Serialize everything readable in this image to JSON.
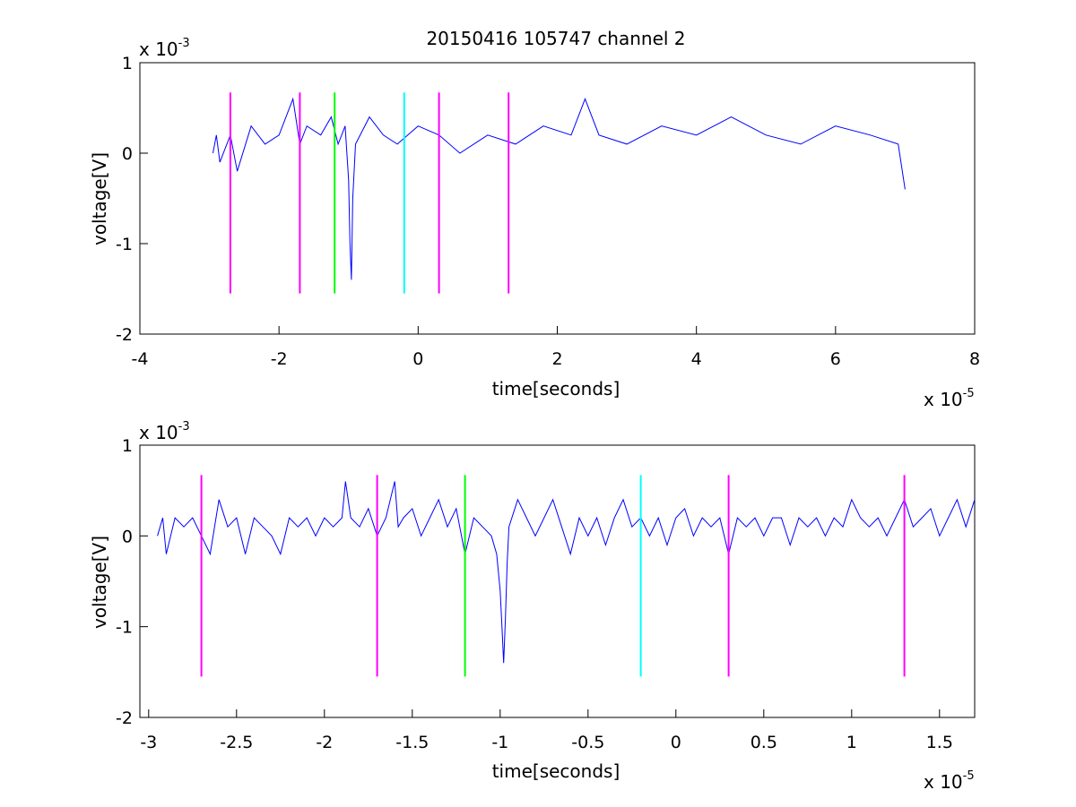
{
  "chart_data": [
    {
      "type": "line",
      "title": "20150416 105747 channel 2",
      "xlabel": "time[seconds]",
      "ylabel": "voltage[V]",
      "x_exponent_label": "x 10",
      "x_exponent": "-5",
      "y_exponent_label": "x 10",
      "y_exponent": "-3",
      "xlim": [
        -4,
        8
      ],
      "ylim": [
        -2,
        1
      ],
      "xticks": [
        "-4",
        "-2",
        "0",
        "2",
        "4",
        "6",
        "8"
      ],
      "yticks": [
        "-2",
        "-1",
        "0",
        "1"
      ],
      "grid": false,
      "series": [
        {
          "color": "#0000ff",
          "x": [
            -2.95,
            -2.9,
            -2.85,
            -2.7,
            -2.6,
            -2.4,
            -2.2,
            -2.0,
            -1.8,
            -1.7,
            -1.6,
            -1.4,
            -1.25,
            -1.15,
            -1.05,
            -1.0,
            -0.98,
            -0.96,
            -0.94,
            -0.9,
            -0.7,
            -0.5,
            -0.3,
            0.0,
            0.3,
            0.6,
            1.0,
            1.4,
            1.8,
            2.2,
            2.4,
            2.6,
            3.0,
            3.5,
            4.0,
            4.5,
            5.0,
            5.5,
            6.0,
            6.5,
            6.9,
            7.0
          ],
          "y": [
            0.0,
            0.2,
            -0.1,
            0.2,
            -0.2,
            0.3,
            0.1,
            0.2,
            0.6,
            0.1,
            0.3,
            0.2,
            0.4,
            0.1,
            0.3,
            -0.3,
            -1.0,
            -1.4,
            -0.5,
            0.1,
            0.4,
            0.2,
            0.1,
            0.3,
            0.2,
            0.0,
            0.2,
            0.1,
            0.3,
            0.2,
            0.6,
            0.2,
            0.1,
            0.3,
            0.2,
            0.4,
            0.2,
            0.1,
            0.3,
            0.2,
            0.1,
            -0.4
          ]
        },
        {
          "color": "#ff00ff",
          "x": [
            -2.7,
            -2.7
          ],
          "y": [
            -1.55,
            0.67
          ]
        },
        {
          "color": "#ff00ff",
          "x": [
            -1.7,
            -1.7
          ],
          "y": [
            -1.55,
            0.67
          ]
        },
        {
          "color": "#00ff00",
          "x": [
            -1.2,
            -1.2
          ],
          "y": [
            -1.55,
            0.67
          ]
        },
        {
          "color": "#00ffff",
          "x": [
            -0.2,
            -0.2
          ],
          "y": [
            -1.55,
            0.67
          ]
        },
        {
          "color": "#ff00ff",
          "x": [
            0.3,
            0.3
          ],
          "y": [
            -1.55,
            0.67
          ]
        },
        {
          "color": "#ff00ff",
          "x": [
            1.3,
            1.3
          ],
          "y": [
            -1.55,
            0.67
          ]
        }
      ]
    },
    {
      "type": "line",
      "title": "",
      "xlabel": "time[seconds]",
      "ylabel": "voltage[V]",
      "x_exponent_label": "x 10",
      "x_exponent": "-5",
      "y_exponent_label": "x 10",
      "y_exponent": "-3",
      "xlim": [
        -3.05,
        1.7
      ],
      "ylim": [
        -2,
        1
      ],
      "xticks": [
        "-3",
        "-2.5",
        "-2",
        "-1.5",
        "-1",
        "-0.5",
        "0",
        "0.5",
        "1",
        "1.5"
      ],
      "yticks": [
        "-2",
        "-1",
        "0",
        "1"
      ],
      "grid": false,
      "series": [
        {
          "color": "#0000ff",
          "x": [
            -2.95,
            -2.92,
            -2.9,
            -2.85,
            -2.8,
            -2.75,
            -2.7,
            -2.65,
            -2.6,
            -2.55,
            -2.5,
            -2.45,
            -2.4,
            -2.35,
            -2.3,
            -2.25,
            -2.2,
            -2.15,
            -2.1,
            -2.05,
            -2.0,
            -1.95,
            -1.9,
            -1.88,
            -1.85,
            -1.8,
            -1.75,
            -1.7,
            -1.65,
            -1.6,
            -1.58,
            -1.55,
            -1.5,
            -1.45,
            -1.4,
            -1.35,
            -1.3,
            -1.25,
            -1.2,
            -1.15,
            -1.1,
            -1.05,
            -1.02,
            -1.0,
            -0.99,
            -0.98,
            -0.97,
            -0.96,
            -0.95,
            -0.9,
            -0.85,
            -0.8,
            -0.75,
            -0.7,
            -0.65,
            -0.6,
            -0.55,
            -0.5,
            -0.45,
            -0.4,
            -0.35,
            -0.3,
            -0.25,
            -0.2,
            -0.15,
            -0.1,
            -0.05,
            0.0,
            0.05,
            0.1,
            0.15,
            0.2,
            0.25,
            0.3,
            0.35,
            0.4,
            0.45,
            0.5,
            0.55,
            0.6,
            0.65,
            0.7,
            0.75,
            0.8,
            0.85,
            0.9,
            0.95,
            1.0,
            1.05,
            1.1,
            1.15,
            1.2,
            1.25,
            1.3,
            1.35,
            1.4,
            1.45,
            1.5,
            1.55,
            1.6,
            1.65,
            1.7
          ],
          "y": [
            0.0,
            0.2,
            -0.2,
            0.2,
            0.1,
            0.2,
            0.0,
            -0.2,
            0.4,
            0.1,
            0.2,
            -0.2,
            0.2,
            0.1,
            0.0,
            -0.2,
            0.2,
            0.1,
            0.2,
            0.0,
            0.2,
            0.1,
            0.2,
            0.6,
            0.2,
            0.1,
            0.3,
            0.0,
            0.2,
            0.6,
            0.1,
            0.2,
            0.3,
            0.0,
            0.2,
            0.4,
            0.1,
            0.3,
            -0.2,
            0.2,
            0.1,
            0.0,
            -0.2,
            -0.6,
            -1.0,
            -1.4,
            -0.9,
            -0.3,
            0.1,
            0.4,
            0.2,
            0.0,
            0.2,
            0.4,
            0.1,
            -0.2,
            0.2,
            0.0,
            0.2,
            -0.1,
            0.2,
            0.4,
            0.1,
            0.2,
            0.0,
            0.2,
            -0.1,
            0.2,
            0.3,
            0.0,
            0.2,
            0.1,
            0.2,
            -0.2,
            0.2,
            0.1,
            0.2,
            0.0,
            0.2,
            0.2,
            -0.1,
            0.2,
            0.1,
            0.2,
            0.0,
            0.2,
            0.1,
            0.4,
            0.2,
            0.1,
            0.2,
            0.0,
            0.2,
            0.4,
            0.1,
            0.2,
            0.3,
            0.0,
            0.2,
            0.4,
            0.1,
            0.4
          ]
        },
        {
          "color": "#ff00ff",
          "x": [
            -2.7,
            -2.7
          ],
          "y": [
            -1.55,
            0.67
          ]
        },
        {
          "color": "#ff00ff",
          "x": [
            -1.7,
            -1.7
          ],
          "y": [
            -1.55,
            0.67
          ]
        },
        {
          "color": "#00ff00",
          "x": [
            -1.2,
            -1.2
          ],
          "y": [
            -1.55,
            0.67
          ]
        },
        {
          "color": "#00ffff",
          "x": [
            -0.2,
            -0.2
          ],
          "y": [
            -1.55,
            0.67
          ]
        },
        {
          "color": "#ff00ff",
          "x": [
            0.3,
            0.3
          ],
          "y": [
            -1.55,
            0.67
          ]
        },
        {
          "color": "#ff00ff",
          "x": [
            1.3,
            1.3
          ],
          "y": [
            -1.55,
            0.67
          ]
        }
      ]
    }
  ]
}
